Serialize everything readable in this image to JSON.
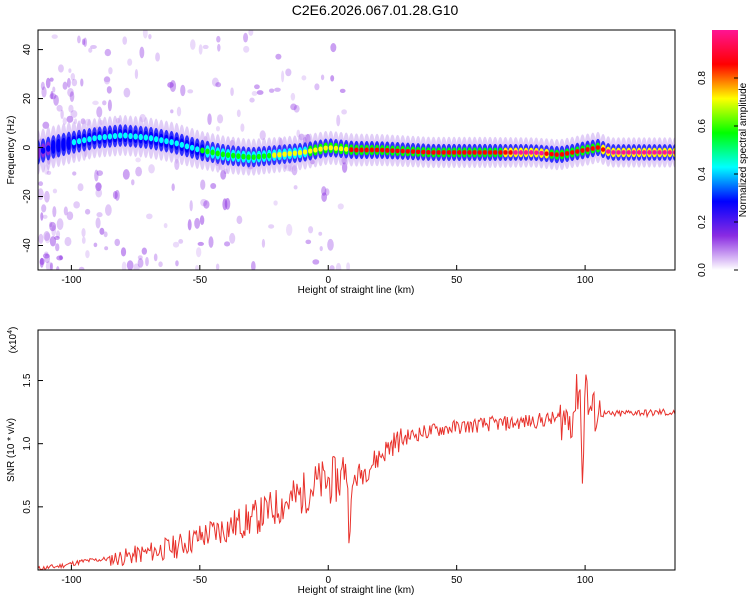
{
  "title": "C2E6.2026.067.01.28.G10",
  "chart_data": [
    {
      "type": "heatmap",
      "xlabel": "Height of straight line (km)",
      "ylabel": "Frequency (Hz)",
      "xlim": [
        -113,
        135
      ],
      "ylim": [
        -50,
        48
      ],
      "x_ticks": [
        -100,
        -50,
        0,
        50,
        100
      ],
      "y_ticks": [
        -40,
        -20,
        0,
        20,
        40
      ],
      "colorbar": {
        "label": "Normalized spectral amplitude",
        "range": [
          0,
          1
        ],
        "ticks": [
          "0.0",
          "0.2",
          "0.4",
          "0.6",
          "0.8"
        ],
        "colors": [
          "#ffffff",
          "#8a2be2",
          "#0000ff",
          "#00ffff",
          "#00ff00",
          "#ffff00",
          "#ff0000",
          "#ff1493"
        ]
      },
      "ridge": {
        "x": [
          -113,
          -108,
          -100,
          -90,
          -80,
          -70,
          -60,
          -50,
          -40,
          -30,
          -20,
          -10,
          0,
          10,
          20,
          40,
          60,
          80,
          90,
          95,
          100,
          105,
          110,
          120,
          135
        ],
        "y": [
          -2,
          0,
          2,
          4,
          5,
          4,
          2,
          -1,
          -3,
          -4,
          -3,
          -2,
          0,
          -1,
          -1,
          -2,
          -2,
          -2,
          -3,
          -2,
          -1,
          0,
          -2,
          -2,
          -2
        ]
      },
      "ridge_amplitude": [
        0.2,
        0.3,
        0.35,
        0.45,
        0.4,
        0.4,
        0.4,
        0.5,
        0.55,
        0.6,
        0.65,
        0.7,
        0.75,
        0.8,
        0.85,
        0.9,
        0.9,
        0.95,
        0.9,
        0.9,
        0.85,
        0.9,
        0.95,
        0.95,
        0.95
      ]
    },
    {
      "type": "line",
      "xlabel": "Height of straight line (km)",
      "ylabel": "SNR (10 * v/v)",
      "y_scale_label": "(x10",
      "y_scale_exponent": "4",
      "xlim": [
        -113,
        135
      ],
      "ylim": [
        0,
        1.9
      ],
      "x_ticks": [
        -100,
        -50,
        0,
        50,
        100
      ],
      "y_ticks": [
        0.5,
        1.0,
        1.5
      ],
      "color": "#e8322c",
      "series": [
        {
          "x": [
            -113,
            -105,
            -100,
            -95,
            -90,
            -85,
            -80,
            -75,
            -70,
            -65,
            -60,
            -55,
            -50,
            -45,
            -40,
            -35,
            -30,
            -25,
            -20,
            -15,
            -10,
            -5,
            0,
            5,
            7,
            8,
            10,
            15,
            20,
            25,
            30,
            35,
            40,
            45,
            50,
            55,
            60,
            65,
            70,
            75,
            80,
            85,
            90,
            95,
            98,
            99,
            100,
            101,
            103,
            105,
            110,
            115,
            120,
            125,
            130,
            135
          ],
          "y": [
            0.01,
            0.03,
            0.05,
            0.07,
            0.08,
            0.09,
            0.1,
            0.12,
            0.14,
            0.16,
            0.18,
            0.22,
            0.26,
            0.3,
            0.33,
            0.37,
            0.4,
            0.45,
            0.5,
            0.55,
            0.6,
            0.68,
            0.7,
            0.72,
            0.9,
            0.3,
            0.72,
            0.8,
            0.9,
            1.0,
            1.05,
            1.08,
            1.1,
            1.12,
            1.13,
            1.14,
            1.15,
            1.16,
            1.16,
            1.17,
            1.18,
            1.19,
            1.2,
            1.21,
            1.5,
            0.6,
            1.65,
            1.3,
            1.25,
            1.24,
            1.23,
            1.24,
            1.25,
            1.24,
            1.25,
            1.24
          ]
        }
      ]
    }
  ]
}
